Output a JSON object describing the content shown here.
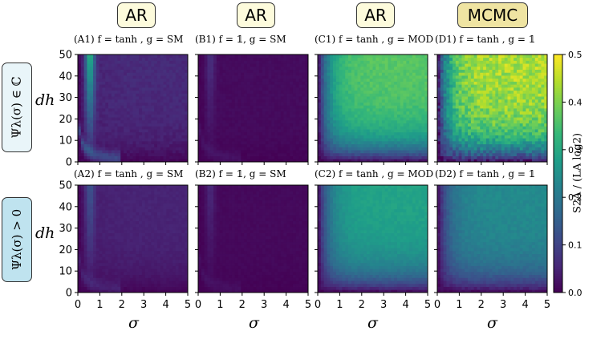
{
  "header": {
    "columns": [
      {
        "label": "AR",
        "color": "#fdfbdc"
      },
      {
        "label": "AR",
        "color": "#fdfbdc"
      },
      {
        "label": "AR",
        "color": "#fdfbdc"
      },
      {
        "label": "MCMC",
        "color": "#efe4a2"
      }
    ]
  },
  "rows": [
    {
      "label": "Ψλ(σ) ∈ ℂ",
      "color": "#e9f5f9"
    },
    {
      "label": "Ψλ(σ) > 0",
      "color": "#bfe3ef"
    }
  ],
  "chart_data": {
    "type": "heatmap",
    "xlabel": "σ",
    "ylabel": "dh",
    "xlim": [
      0,
      5
    ],
    "ylim": [
      0,
      50
    ],
    "x_ticks": [
      0,
      1,
      2,
      3,
      4,
      5
    ],
    "y_ticks": [
      0,
      10,
      20,
      30,
      40,
      50
    ],
    "colormap": "viridis",
    "colorbar": {
      "label": "S2A / (LA log2)",
      "range": [
        0.0,
        0.5
      ],
      "ticks": [
        "0.0",
        "0.1",
        "0.2",
        "0.3",
        "0.4",
        "0.5"
      ]
    },
    "panels": [
      {
        "id": "A1",
        "title": "(A1) f = tanh , g = SM",
        "plateau": 0.06,
        "ridge": 0.28,
        "noise": 0.01
      },
      {
        "id": "B1",
        "title": "(B1) f = 𝟙, g = SM",
        "plateau": 0.015,
        "ridge": 0.06,
        "noise": 0.005
      },
      {
        "id": "C1",
        "title": "(C1) f = tanh , g = MOD",
        "plateau": 0.37,
        "ridge": 0.0,
        "noise": 0.015
      },
      {
        "id": "D1",
        "title": "(D1) f = tanh , g = 𝟙",
        "plateau": 0.44,
        "ridge": 0.0,
        "noise": 0.045
      },
      {
        "id": "A2",
        "title": "(A2) f = tanh , g = SM",
        "plateau": 0.05,
        "ridge": 0.1,
        "noise": 0.006
      },
      {
        "id": "B2",
        "title": "(B2) f = 𝟙, g = SM",
        "plateau": 0.012,
        "ridge": 0.05,
        "noise": 0.004
      },
      {
        "id": "C2",
        "title": "(C2) f = tanh , g = MOD",
        "plateau": 0.29,
        "ridge": 0.0,
        "noise": 0.01
      },
      {
        "id": "D2",
        "title": "(D2) f = tanh , g = 𝟙",
        "plateau": 0.24,
        "ridge": 0.0,
        "noise": 0.012
      }
    ]
  }
}
